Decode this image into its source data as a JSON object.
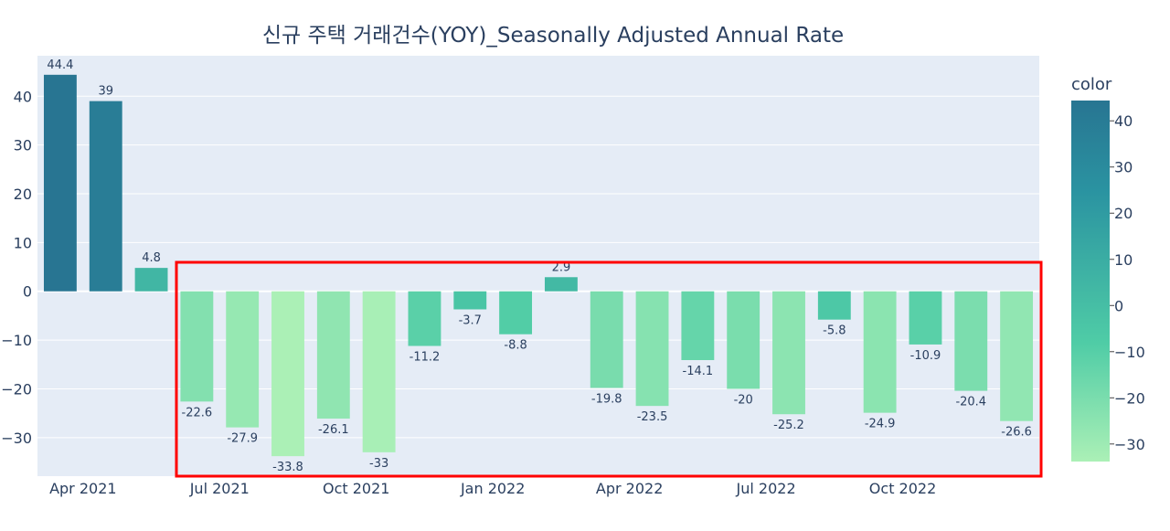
{
  "chart_data": {
    "type": "bar",
    "title": "신규 주택 거래건수(YOY)_Seasonally Adjusted Annual Rate",
    "xlabel": "",
    "ylabel": "",
    "categories": [
      "2021-03",
      "2021-04",
      "2021-05",
      "2021-06",
      "2021-07",
      "2021-08",
      "2021-09",
      "2021-10",
      "2021-11",
      "2021-12",
      "2022-01",
      "2022-02",
      "2022-03",
      "2022-04",
      "2022-05",
      "2022-06",
      "2022-07",
      "2022-08",
      "2022-09",
      "2022-10",
      "2022-11",
      "2022-12"
    ],
    "values": [
      44.4,
      39,
      4.8,
      -22.6,
      -27.9,
      -33.8,
      -26.1,
      -33,
      -11.2,
      -3.7,
      -8.8,
      2.9,
      -19.8,
      -23.5,
      -14.1,
      -20,
      -25.2,
      -5.8,
      -24.9,
      -10.9,
      -20.4,
      -26.6
    ],
    "x_ticks": [
      {
        "date": "2021-04",
        "label": "Apr 2021"
      },
      {
        "date": "2021-07",
        "label": "Jul 2021"
      },
      {
        "date": "2021-10",
        "label": "Oct 2021"
      },
      {
        "date": "2022-01",
        "label": "Jan 2022"
      },
      {
        "date": "2022-04",
        "label": "Apr 2022"
      },
      {
        "date": "2022-07",
        "label": "Jul 2022"
      },
      {
        "date": "2022-10",
        "label": "Oct 2022"
      }
    ],
    "y_ticks": [
      {
        "value": 40,
        "label": "40"
      },
      {
        "value": 30,
        "label": "30"
      },
      {
        "value": 20,
        "label": "20"
      },
      {
        "value": 10,
        "label": "10"
      },
      {
        "value": 0,
        "label": "0"
      },
      {
        "value": -10,
        "label": "−10"
      },
      {
        "value": -20,
        "label": "−20"
      },
      {
        "value": -30,
        "label": "−30"
      }
    ],
    "ylim": [
      -37.9,
      48.3
    ],
    "grid": true,
    "colorscale": [
      "#abf0b6",
      "#4fcca6",
      "#2a93a1",
      "#287592"
    ],
    "colorbar": {
      "title": "color",
      "range": [
        -33.8,
        44.4
      ],
      "ticks": [
        {
          "value": 40,
          "label": "40"
        },
        {
          "value": 30,
          "label": "30"
        },
        {
          "value": 20,
          "label": "20"
        },
        {
          "value": 10,
          "label": "10"
        },
        {
          "value": 0,
          "label": "0"
        },
        {
          "value": -10,
          "label": "−10"
        },
        {
          "value": -20,
          "label": "−20"
        },
        {
          "value": -30,
          "label": "−30"
        }
      ]
    },
    "highlight": {
      "from": "2021-06",
      "to": "2022-12",
      "color": "#ff0000"
    }
  }
}
